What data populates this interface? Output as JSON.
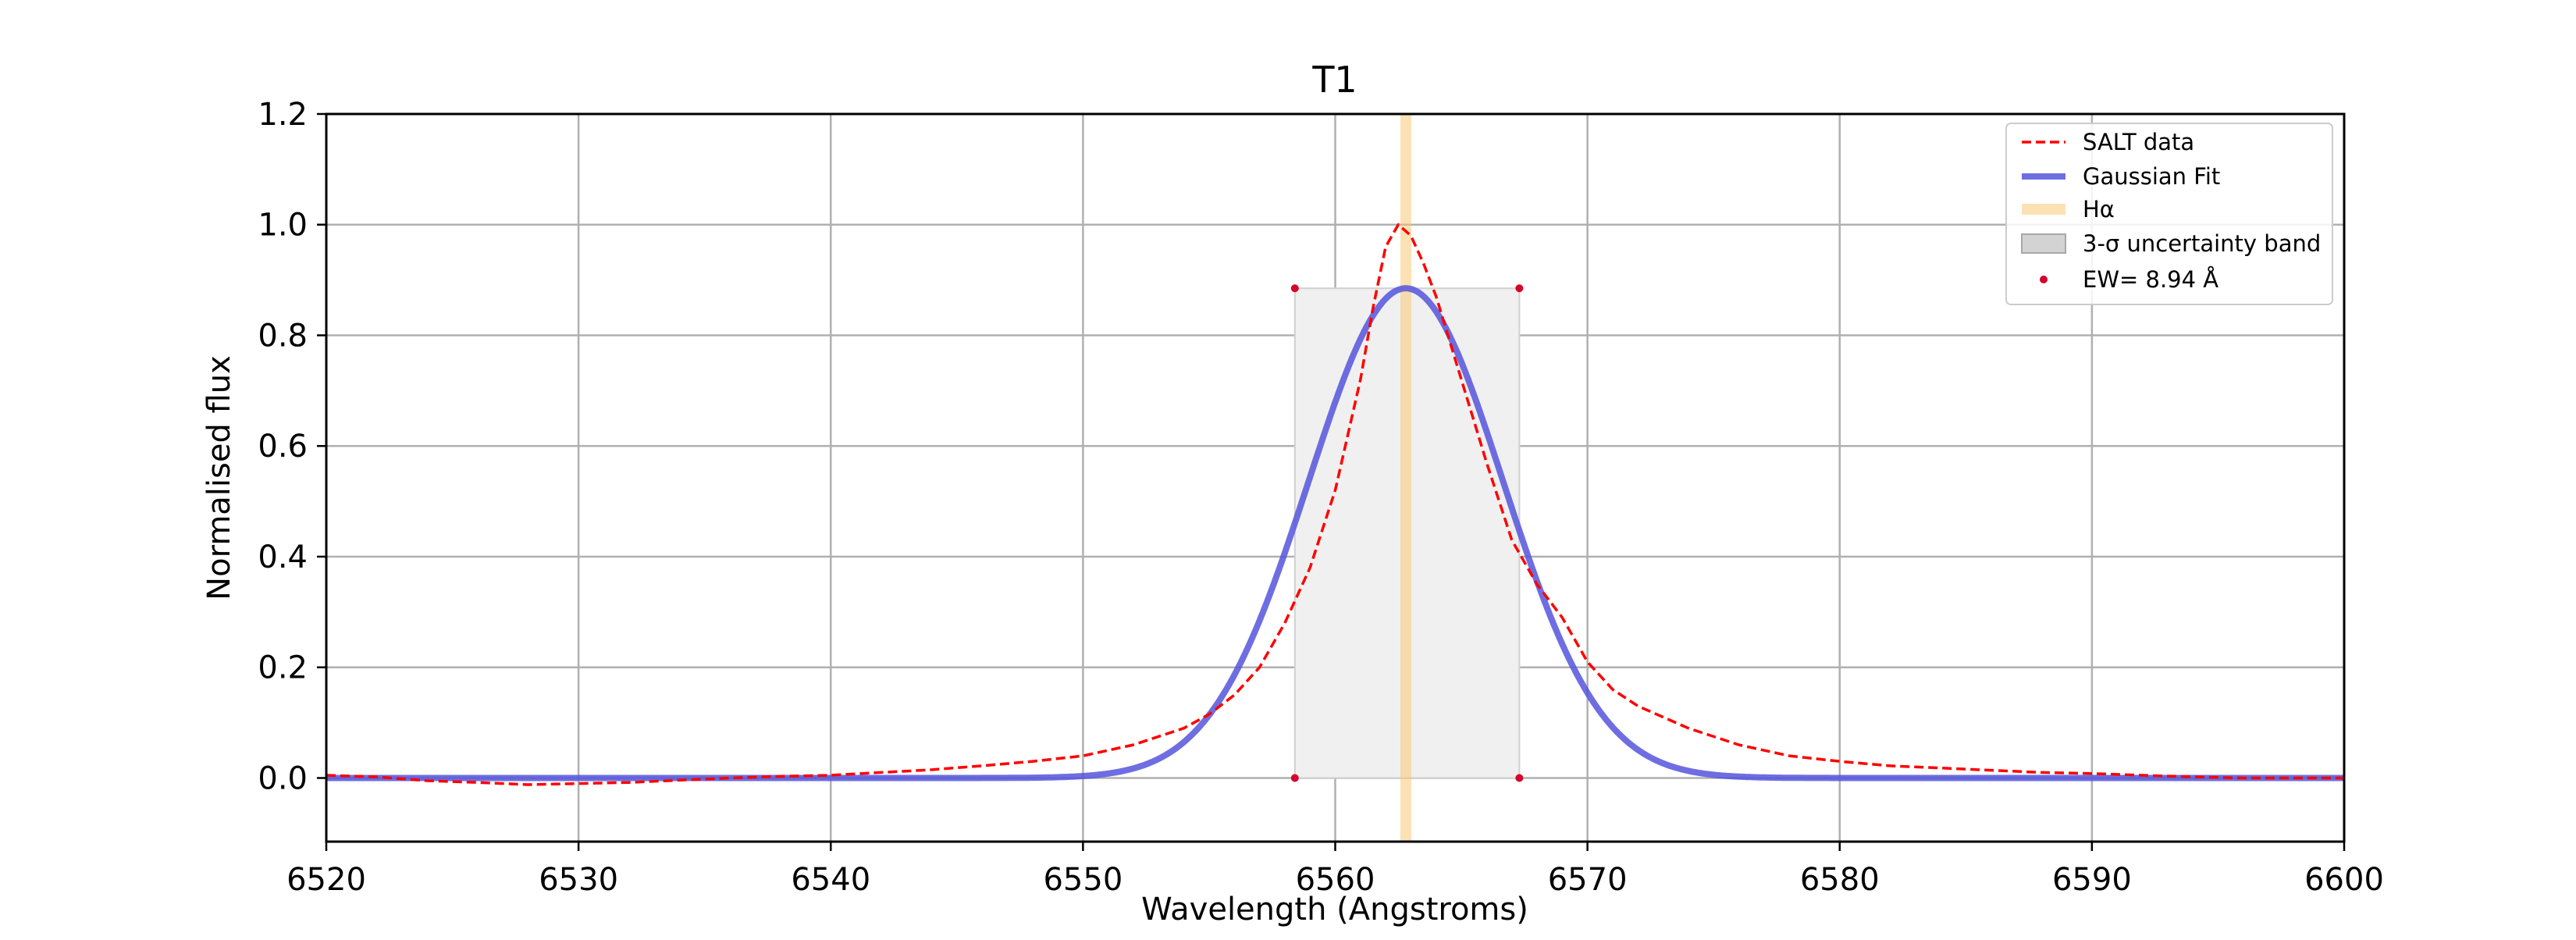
{
  "chart_data": {
    "type": "line",
    "title": "T1",
    "xlabel": "Wavelength (Angstroms)",
    "ylabel": "Normalised flux",
    "xlim": [
      6520,
      6600
    ],
    "ylim": [
      -0.115,
      1.2
    ],
    "xticks": [
      6520,
      6530,
      6540,
      6550,
      6560,
      6570,
      6580,
      6590,
      6600
    ],
    "yticks": [
      0.0,
      0.2,
      0.4,
      0.6,
      0.8,
      1.0,
      1.2
    ],
    "xtick_labels": [
      "6520",
      "6530",
      "6540",
      "6550",
      "6560",
      "6570",
      "6580",
      "6590",
      "6600"
    ],
    "ytick_labels": [
      "0.0",
      "0.2",
      "0.4",
      "0.6",
      "0.8",
      "1.0",
      "1.2"
    ],
    "grid": true,
    "legend_position": "upper right",
    "series": [
      {
        "name": "SALT data",
        "kind": "dashed-line",
        "color": "#ff0000",
        "x": [
          6520,
          6522,
          6524,
          6526,
          6528,
          6530,
          6532,
          6534,
          6536,
          6538,
          6540,
          6542,
          6544,
          6546,
          6548,
          6550,
          6552,
          6554,
          6555,
          6556,
          6557,
          6558,
          6559,
          6560,
          6561,
          6561.5,
          6562,
          6562.5,
          6563,
          6563.5,
          6564,
          6565,
          6566,
          6567,
          6568,
          6569,
          6570,
          6571,
          6572,
          6574,
          6576,
          6578,
          6580,
          6582,
          6584,
          6586,
          6588,
          6590,
          6592,
          6594,
          6596,
          6598,
          6600
        ],
        "y": [
          0.005,
          0.002,
          -0.005,
          -0.008,
          -0.012,
          -0.01,
          -0.008,
          -0.004,
          0.0,
          0.003,
          0.005,
          0.01,
          0.015,
          0.022,
          0.03,
          0.04,
          0.06,
          0.09,
          0.115,
          0.15,
          0.2,
          0.28,
          0.38,
          0.52,
          0.72,
          0.85,
          0.96,
          1.0,
          0.98,
          0.93,
          0.87,
          0.72,
          0.57,
          0.43,
          0.35,
          0.29,
          0.21,
          0.16,
          0.13,
          0.09,
          0.06,
          0.04,
          0.03,
          0.022,
          0.018,
          0.014,
          0.01,
          0.008,
          0.005,
          0.002,
          0.0,
          0.0,
          0.0
        ]
      },
      {
        "name": "Gaussian Fit",
        "kind": "gaussian",
        "color": "#5555dd",
        "amplitude": 0.885,
        "center": 6562.8,
        "sigma": 3.85
      },
      {
        "name": "Hα",
        "kind": "vertical-band",
        "color": "#f7c46a",
        "x": 6562.8
      },
      {
        "name": "3-σ uncertainty band",
        "kind": "shaded-box",
        "color": "#c8c8c8",
        "x_range": [
          6558.4,
          6567.3
        ],
        "y_range": [
          0.0,
          0.885
        ]
      },
      {
        "name": "EW= 8.94 Å",
        "kind": "points",
        "color": "#d6002a",
        "x": [
          6558.4,
          6567.3,
          6558.4,
          6567.3
        ],
        "y": [
          0.885,
          0.885,
          0.0,
          0.0
        ]
      }
    ]
  }
}
